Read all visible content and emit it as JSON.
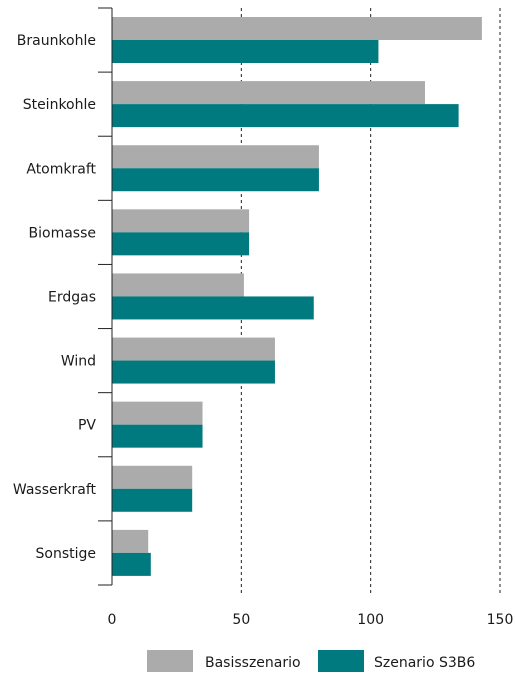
{
  "chart_data": {
    "type": "bar",
    "orientation": "horizontal",
    "categories": [
      "Braunkohle",
      "Steinkohle",
      "Atomkraft",
      "Biomasse",
      "Erdgas",
      "Wind",
      "PV",
      "Wasserkraft",
      "Sonstige"
    ],
    "series": [
      {
        "name": "Basisszenario",
        "color": "#ababab",
        "values": [
          143,
          121,
          80,
          53,
          51,
          63,
          35,
          31,
          14
        ]
      },
      {
        "name": "Szenario S3B6",
        "color": "#007a7e",
        "values": [
          103,
          134,
          80,
          53,
          78,
          63,
          35,
          31,
          15
        ]
      }
    ],
    "xticks": [
      "0",
      "50",
      "100",
      "150"
    ],
    "xlim": [
      0,
      150
    ],
    "grid": "vertical dashed",
    "legend": "bottom"
  }
}
